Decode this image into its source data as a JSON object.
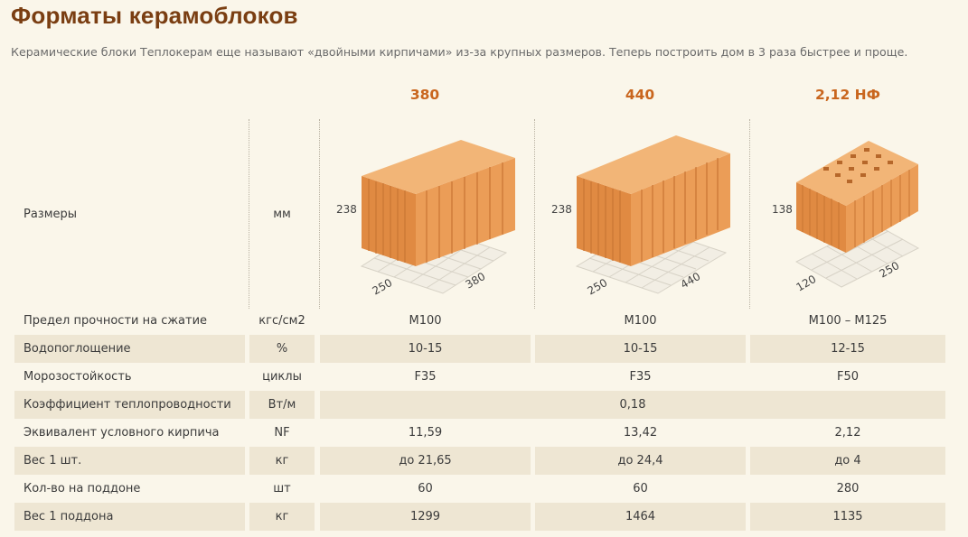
{
  "page": {
    "title": "Форматы керамоблоков",
    "subtitle": "Керамические блоки Теплокерам еще называют «двойными кирпичами» из-за крупных размеров. Теперь построить дом в 3 раза быстрее и проще."
  },
  "columns": [
    "380",
    "440",
    "2,12 НФ"
  ],
  "size_row": {
    "label": "Размеры",
    "unit": "мм"
  },
  "blocks": [
    {
      "height": "238",
      "width": "250",
      "length": "380"
    },
    {
      "height": "238",
      "width": "250",
      "length": "440"
    },
    {
      "height": "138",
      "width": "120",
      "length": "250"
    }
  ],
  "rows": [
    {
      "label": "Предел прочности на сжатие",
      "unit": "кгс/см2",
      "values": [
        "М100",
        "М100",
        "М100 – М125"
      ]
    },
    {
      "label": "Водопоглощение",
      "unit": "%",
      "values": [
        "10-15",
        "10-15",
        "12-15"
      ]
    },
    {
      "label": "Морозостойкость",
      "unit": "циклы",
      "values": [
        "F35",
        "F35",
        "F50"
      ]
    },
    {
      "label": "Коэффициент теплопроводности",
      "unit": "Вт/м",
      "value_all": "0,18"
    },
    {
      "label": "Эквивалент условного кирпича",
      "unit": "NF",
      "values": [
        "11,59",
        "13,42",
        "2,12"
      ]
    },
    {
      "label": "Вес 1 шт.",
      "unit": "кг",
      "values": [
        "до 21,65",
        "до 24,4",
        "до 4"
      ]
    },
    {
      "label": "Кол-во на поддоне",
      "unit": "шт",
      "values": [
        "60",
        "60",
        "280"
      ]
    },
    {
      "label": "Вес 1 поддона",
      "unit": "кг",
      "values": [
        "1299",
        "1464",
        "1135"
      ]
    }
  ],
  "colors": {
    "accent": "#c9661e",
    "title": "#7a3e12",
    "shade": "#eee6d3",
    "brick": "#e99a52"
  }
}
